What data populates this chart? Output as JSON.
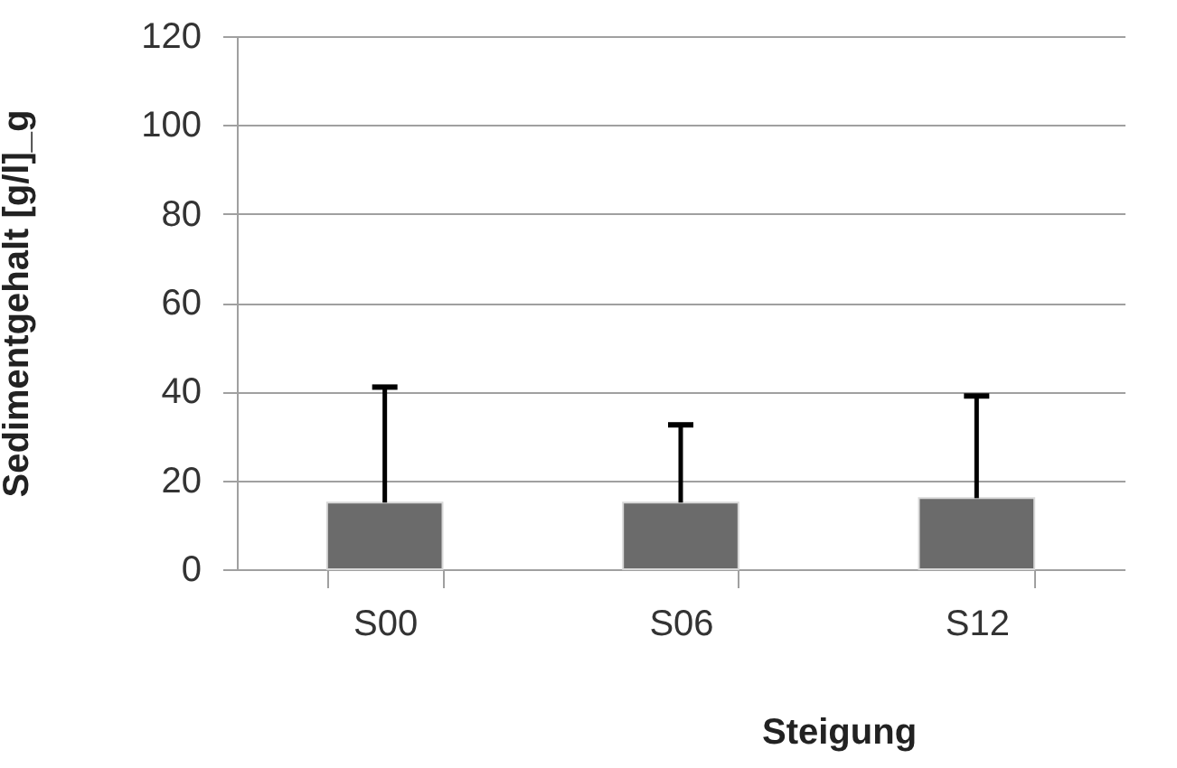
{
  "chart_data": {
    "type": "bar",
    "xlabel": "Steigung",
    "ylabel": "Sedimentgehalt [g/l]_g",
    "categories": [
      "S00",
      "S06",
      "S12"
    ],
    "values": [
      15,
      15,
      16
    ],
    "color": "#6b6b6b",
    "errors": [
      [
        15,
        41
      ],
      [
        15,
        32.5
      ],
      [
        16,
        39
      ]
    ],
    "ylim": [
      0,
      120
    ],
    "yticks": [
      0,
      20,
      40,
      60,
      80,
      100,
      120
    ],
    "grid": "y"
  }
}
